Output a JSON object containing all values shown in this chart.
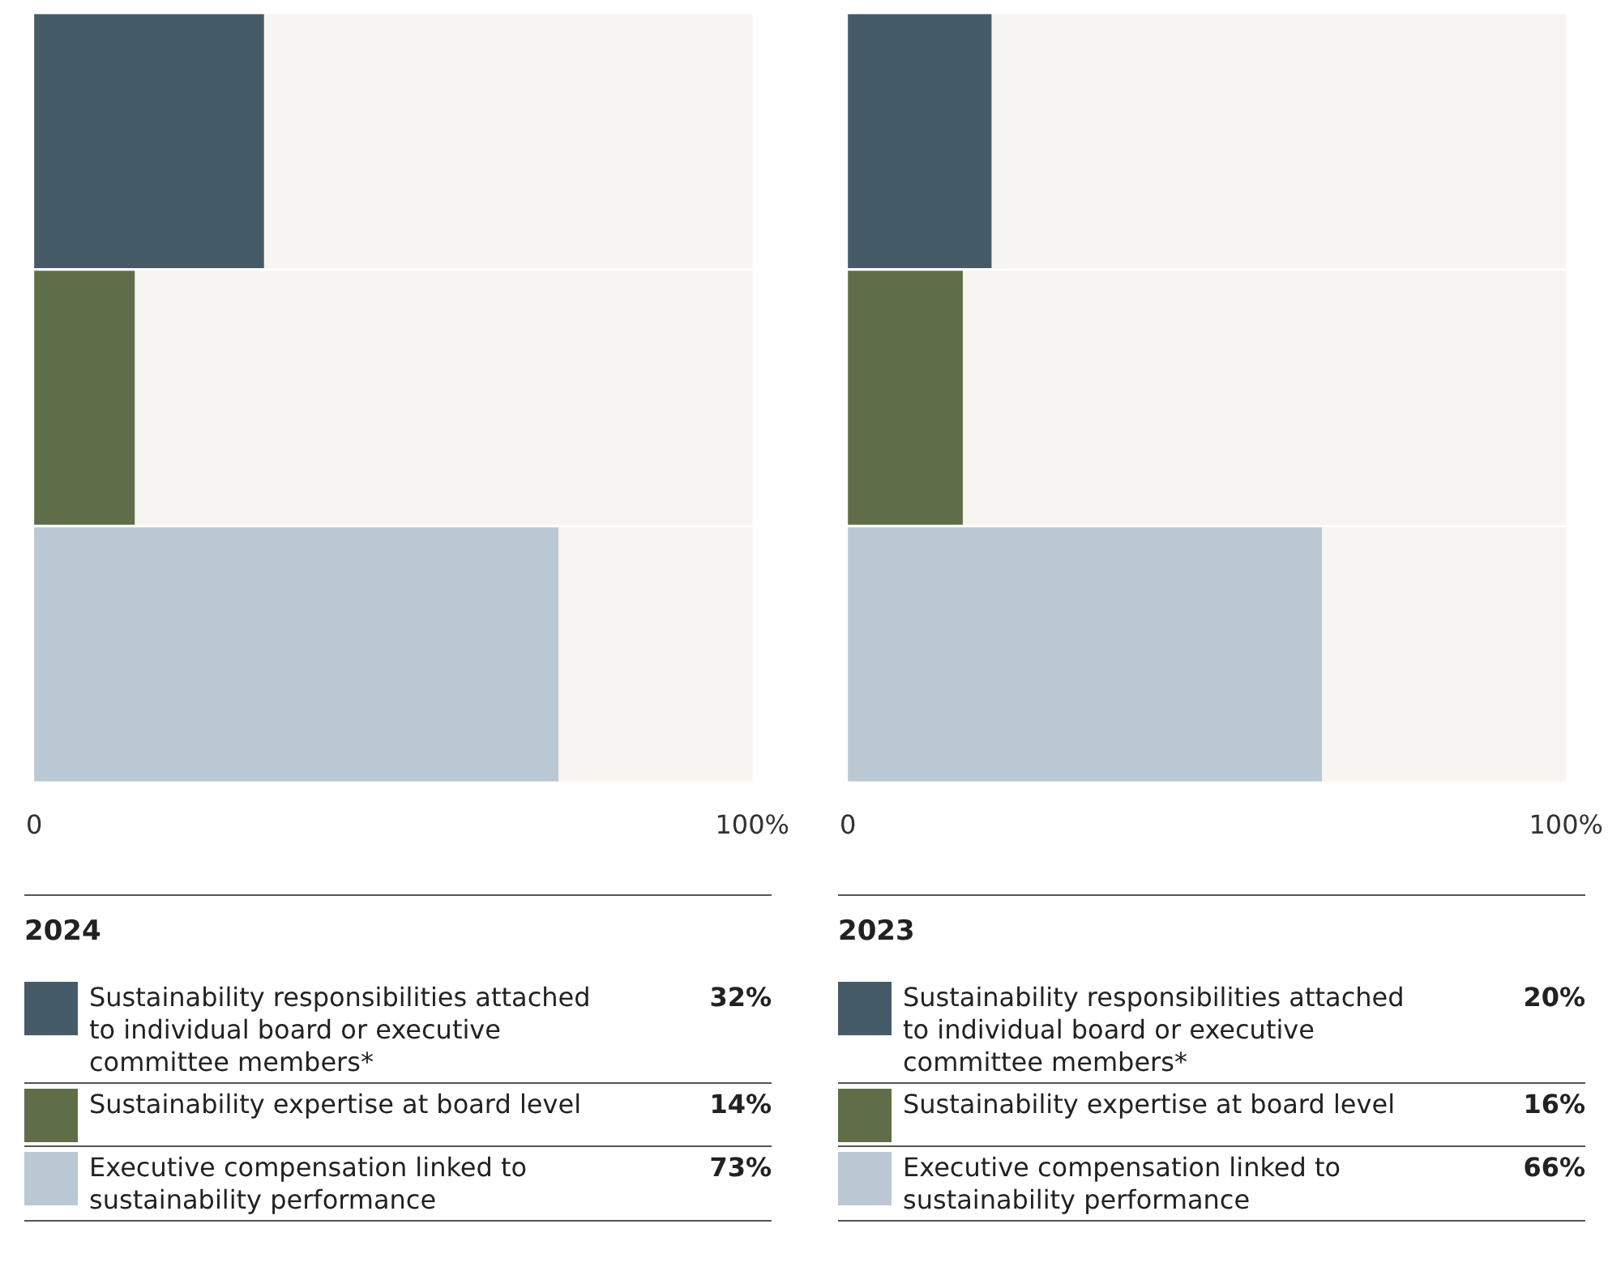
{
  "chart_data": [
    {
      "type": "bar",
      "orientation": "horizontal",
      "stacked": true,
      "title": "2024",
      "categories": [
        null,
        null,
        null
      ],
      "xlim": [
        0,
        100
      ],
      "xticks": [
        0,
        {
          "value": 100,
          "label": "100%"
        }
      ],
      "grid": false,
      "legend": "bottom",
      "tick_labels": "x",
      "annotations": [
        "32%",
        "14%",
        "73%"
      ],
      "series": [
        {
          "name": "Sustainability responsibilities attached to individual board or executive committee members*",
          "color": "#465b68",
          "values": [
            32,
            null,
            null
          ]
        },
        {
          "name": "Sustainability expertise at board level",
          "color": "#5f6e49",
          "values": [
            null,
            14,
            null
          ]
        },
        {
          "name": "Executive compensation linked to sustainability performance",
          "color": "#bac8d4",
          "values": [
            null,
            null,
            73
          ]
        }
      ]
    },
    {
      "type": "bar",
      "orientation": "horizontal",
      "stacked": true,
      "title": "2023",
      "categories": [
        null,
        null,
        null
      ],
      "xlim": [
        0,
        100
      ],
      "xticks": [
        0,
        {
          "value": 100,
          "label": "100%"
        }
      ],
      "grid": false,
      "legend": "bottom",
      "tick_labels": "x",
      "annotations": [
        "20%",
        "16%",
        "66%"
      ],
      "series": [
        {
          "name": "Sustainability responsibilities attached to individual board or executive committee members*",
          "color": "#465b68",
          "values": [
            20,
            null,
            null
          ]
        },
        {
          "name": "Sustainability expertise at board level",
          "color": "#5f6e49",
          "values": [
            null,
            16,
            null
          ]
        },
        {
          "name": "Executive compensation linked to sustainability performance",
          "color": "#bac8d4",
          "values": [
            null,
            null,
            66
          ]
        }
      ]
    }
  ]
}
